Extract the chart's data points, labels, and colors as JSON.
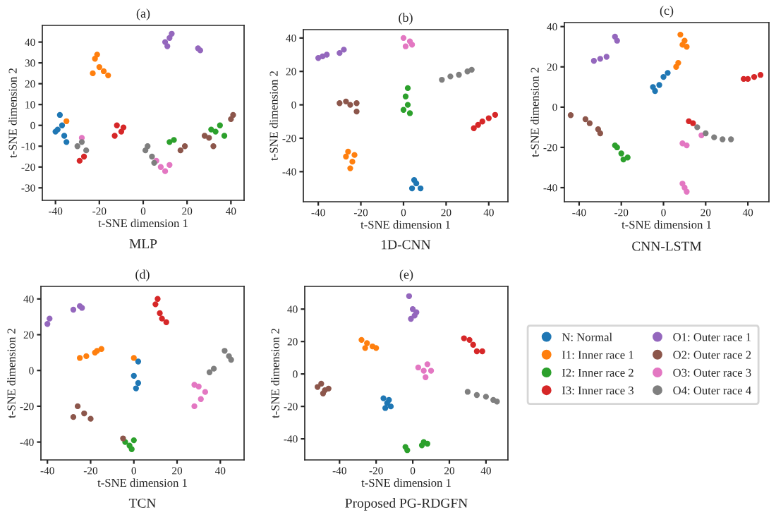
{
  "chart_data": [
    {
      "type": "scatter",
      "title": "(a)",
      "xlabel": "t-SNE dimension 1",
      "ylabel": "t-SNE dimension 2",
      "annotations": [
        "MLP"
      ],
      "xlim": [
        -46,
        46
      ],
      "ylim": [
        -36,
        48
      ],
      "xticks": [
        -40,
        -20,
        0,
        20,
        40
      ],
      "yticks": [
        -30,
        -20,
        -10,
        0,
        10,
        20,
        30,
        40
      ],
      "marker": "circle",
      "grid": false,
      "legend": "right",
      "series": [
        {
          "name": "N: Normal",
          "color": "#1f77b4",
          "x": [
            -38,
            -37,
            -40,
            -36,
            -39,
            -35
          ],
          "values": [
            5,
            0,
            -3,
            -5,
            -2,
            -8
          ]
        },
        {
          "name": "I1: Inner race 1",
          "color": "#ff7f0e",
          "x": [
            -22,
            -20,
            -23,
            -18,
            -16,
            -21,
            -35
          ],
          "values": [
            32,
            28,
            25,
            26,
            24,
            34,
            2
          ]
        },
        {
          "name": "I2: Inner race 2",
          "color": "#2ca02c",
          "x": [
            12,
            14,
            35,
            33,
            37,
            31
          ],
          "values": [
            -8,
            -7,
            0,
            -3,
            -5,
            -2
          ]
        },
        {
          "name": "I3: Inner race 3",
          "color": "#d62728",
          "x": [
            -12,
            -10,
            -13,
            -9,
            -27,
            -29
          ],
          "values": [
            0,
            -3,
            -5,
            -1,
            -15,
            -17
          ]
        },
        {
          "name": "O1: Outer race 1",
          "color": "#9467bd",
          "x": [
            10,
            12,
            11,
            13,
            26,
            25
          ],
          "values": [
            40,
            42,
            38,
            44,
            36,
            37
          ]
        },
        {
          "name": "O2: Outer race 2",
          "color": "#8c564b",
          "x": [
            19,
            17,
            30,
            32,
            28,
            40,
            41
          ],
          "values": [
            -10,
            -12,
            -6,
            -10,
            -5,
            3,
            5
          ]
        },
        {
          "name": "O3: Outer race 3",
          "color": "#e377c2",
          "x": [
            -28,
            8,
            10,
            12,
            6
          ],
          "values": [
            -6,
            -20,
            -22,
            -19,
            -17
          ]
        },
        {
          "name": "O4: Outer race 4",
          "color": "#7f7f7f",
          "x": [
            -28,
            -26,
            -30,
            2,
            4,
            1,
            5
          ],
          "values": [
            -8,
            -12,
            -10,
            -10,
            -15,
            -12,
            -18
          ]
        }
      ]
    },
    {
      "type": "scatter",
      "title": "(b)",
      "xlabel": "t-SNE dimension 1",
      "ylabel": "t-SNE dimension 2",
      "annotations": [
        "1D-CNN"
      ],
      "xlim": [
        -47,
        49
      ],
      "ylim": [
        -58,
        45
      ],
      "xticks": [
        -40,
        -20,
        0,
        20,
        40
      ],
      "yticks": [
        -40,
        -20,
        0,
        20,
        40
      ],
      "marker": "circle",
      "grid": false,
      "series": [
        {
          "color": "#1f77b4",
          "x": [
            5,
            4,
            8,
            6
          ],
          "values": [
            -45,
            -50,
            -50,
            -47
          ]
        },
        {
          "color": "#ff7f0e",
          "x": [
            -26,
            -27,
            -24,
            -25,
            -23
          ],
          "values": [
            -28,
            -31,
            -34,
            -38,
            -30
          ]
        },
        {
          "color": "#2ca02c",
          "x": [
            2,
            1,
            2,
            0,
            3
          ],
          "values": [
            10,
            5,
            0,
            -3,
            -5
          ]
        },
        {
          "color": "#d62728",
          "x": [
            35,
            37,
            33,
            40,
            43
          ],
          "values": [
            -12,
            -10,
            -14,
            -8,
            -6
          ]
        },
        {
          "color": "#9467bd",
          "x": [
            -40,
            -38,
            -36,
            -30,
            -28
          ],
          "values": [
            28,
            29,
            30,
            31,
            33
          ]
        },
        {
          "color": "#8c564b",
          "x": [
            -30,
            -27,
            -25,
            -22,
            -22
          ],
          "values": [
            1,
            2,
            0,
            1,
            -4
          ]
        },
        {
          "color": "#e377c2",
          "x": [
            0,
            4,
            1,
            3
          ],
          "values": [
            40,
            36,
            35,
            38
          ]
        },
        {
          "color": "#7f7f7f",
          "x": [
            18,
            22,
            26,
            30,
            32
          ],
          "values": [
            15,
            17,
            18,
            20,
            21
          ]
        }
      ]
    },
    {
      "type": "scatter",
      "title": "(c)",
      "xlabel": "t-SNE dimension 1",
      "ylabel": "t-SNE dimension 2",
      "annotations": [
        "CNN-LSTM"
      ],
      "xlim": [
        -47,
        50
      ],
      "ylim": [
        -47,
        42
      ],
      "xticks": [
        -40,
        -20,
        0,
        20,
        40
      ],
      "yticks": [
        -40,
        -20,
        0,
        20,
        40
      ],
      "marker": "circle",
      "grid": false,
      "series": [
        {
          "color": "#1f77b4",
          "x": [
            -4,
            -2,
            0,
            2,
            -5
          ],
          "values": [
            8,
            11,
            15,
            17,
            10
          ]
        },
        {
          "color": "#ff7f0e",
          "x": [
            8,
            10,
            11,
            9,
            6,
            7
          ],
          "values": [
            36,
            33,
            30,
            31,
            20,
            22
          ]
        },
        {
          "color": "#2ca02c",
          "x": [
            -22,
            -20,
            -17,
            -23,
            -19
          ],
          "values": [
            -20,
            -23,
            -25,
            -19,
            -26
          ]
        },
        {
          "color": "#d62728",
          "x": [
            40,
            43,
            46,
            38,
            12,
            14
          ],
          "values": [
            14,
            15,
            16,
            14,
            -7,
            -8
          ]
        },
        {
          "color": "#9467bd",
          "x": [
            -33,
            -30,
            -27,
            -23,
            -22
          ],
          "values": [
            23,
            24,
            25,
            35,
            33
          ]
        },
        {
          "color": "#8c564b",
          "x": [
            -44,
            -37,
            -35,
            -30,
            -31
          ],
          "values": [
            -4,
            -6,
            -8,
            -13,
            -11
          ]
        },
        {
          "color": "#e377c2",
          "x": [
            9,
            11,
            10,
            11,
            9,
            18
          ],
          "values": [
            -18,
            -19,
            -40,
            -42,
            -38,
            -14
          ]
        },
        {
          "color": "#7f7f7f",
          "x": [
            16,
            20,
            24,
            28,
            32
          ],
          "values": [
            -10,
            -13,
            -15,
            -16,
            -16
          ]
        }
      ]
    },
    {
      "type": "scatter",
      "title": "(d)",
      "xlabel": "t-SNE dimension 1",
      "ylabel": "t-SNE dimension 2",
      "annotations": [
        "TCN"
      ],
      "xlim": [
        -43,
        51
      ],
      "ylim": [
        -50,
        47
      ],
      "xticks": [
        -40,
        -20,
        0,
        20,
        40
      ],
      "yticks": [
        -40,
        -20,
        0,
        20,
        40
      ],
      "marker": "circle",
      "grid": false,
      "series": [
        {
          "color": "#1f77b4",
          "x": [
            2,
            0,
            2,
            1
          ],
          "values": [
            5,
            -3,
            -7,
            -10
          ]
        },
        {
          "color": "#ff7f0e",
          "x": [
            -25,
            -22,
            -18,
            -15,
            -17,
            0
          ],
          "values": [
            7,
            8,
            10,
            12,
            11,
            7
          ]
        },
        {
          "color": "#2ca02c",
          "x": [
            -4,
            -2,
            0,
            -1
          ],
          "values": [
            -40,
            -42,
            -39,
            -44
          ]
        },
        {
          "color": "#d62728",
          "x": [
            11,
            10,
            12,
            13,
            15
          ],
          "values": [
            40,
            37,
            32,
            29,
            27
          ]
        },
        {
          "color": "#9467bd",
          "x": [
            -40,
            -39,
            -28,
            -25,
            -24
          ],
          "values": [
            26,
            29,
            34,
            36,
            35
          ]
        },
        {
          "color": "#8c564b",
          "x": [
            -26,
            -23,
            -20,
            -28,
            -5
          ],
          "values": [
            -20,
            -24,
            -27,
            -26,
            -38
          ]
        },
        {
          "color": "#e377c2",
          "x": [
            28,
            30,
            28,
            31,
            33
          ],
          "values": [
            -8,
            -9,
            -20,
            -16,
            -12
          ]
        },
        {
          "color": "#7f7f7f",
          "x": [
            35,
            37,
            42,
            44,
            45
          ],
          "values": [
            -1,
            1,
            11,
            8,
            6
          ]
        }
      ]
    },
    {
      "type": "scatter",
      "title": "(e)",
      "xlabel": "t-SNE dimension 1",
      "ylabel": "t-SNE dimension 2",
      "annotations": [
        "Proposed PG-RDGFN"
      ],
      "xlim": [
        -59,
        52
      ],
      "ylim": [
        -53,
        54
      ],
      "xticks": [
        -40,
        -20,
        0,
        20,
        40
      ],
      "yticks": [
        -40,
        -20,
        0,
        20,
        40
      ],
      "marker": "circle",
      "grid": false,
      "series": [
        {
          "color": "#1f77b4",
          "x": [
            -16,
            -14,
            -12,
            -15,
            -13
          ],
          "values": [
            -15,
            -18,
            -20,
            -21,
            -16
          ]
        },
        {
          "color": "#ff7f0e",
          "x": [
            -28,
            -25,
            -22,
            -26,
            -20
          ],
          "values": [
            21,
            19,
            17,
            16,
            16
          ]
        },
        {
          "color": "#2ca02c",
          "x": [
            -4,
            -3,
            6,
            8,
            5
          ],
          "values": [
            -45,
            -47,
            -42,
            -43,
            -44
          ]
        },
        {
          "color": "#d62728",
          "x": [
            28,
            31,
            33,
            35,
            38
          ],
          "values": [
            22,
            21,
            18,
            14,
            14
          ]
        },
        {
          "color": "#9467bd",
          "x": [
            -2,
            0,
            1,
            2,
            -1
          ],
          "values": [
            48,
            40,
            36,
            38,
            34
          ]
        },
        {
          "color": "#8c564b",
          "x": [
            -52,
            -50,
            -48,
            -46,
            -49
          ],
          "values": [
            -8,
            -6,
            -10,
            -9,
            -12
          ]
        },
        {
          "color": "#e377c2",
          "x": [
            3,
            6,
            8,
            10,
            7
          ],
          "values": [
            4,
            2,
            6,
            2,
            -2
          ]
        },
        {
          "color": "#7f7f7f",
          "x": [
            30,
            35,
            40,
            44,
            46
          ],
          "values": [
            -11,
            -13,
            -14,
            -16,
            -17
          ]
        }
      ]
    }
  ]
}
